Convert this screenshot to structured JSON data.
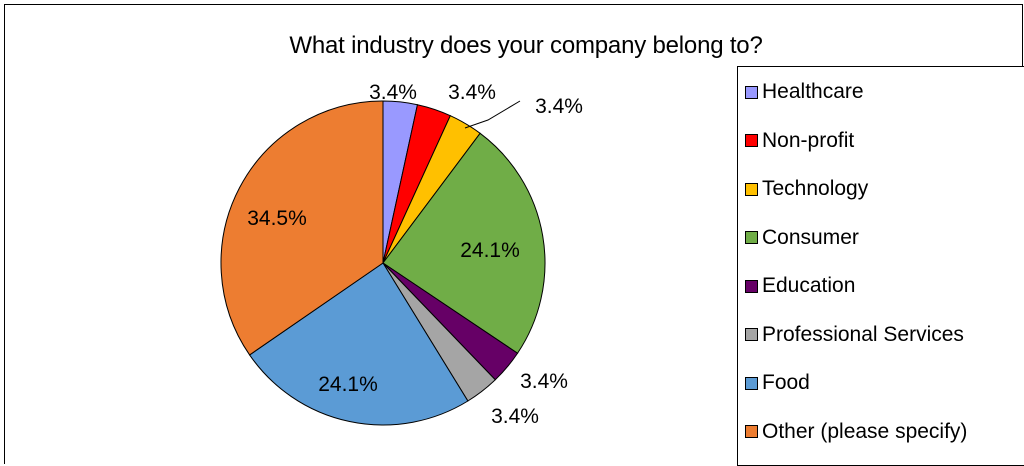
{
  "chart_data": {
    "type": "pie",
    "title": "What industry does your company belong to?",
    "categories": [
      "Healthcare",
      "Non-profit",
      "Technology",
      "Consumer",
      "Education",
      "Professional Services",
      "Food",
      "Other (please specify)"
    ],
    "values": [
      3.4,
      3.4,
      3.4,
      24.1,
      3.4,
      3.4,
      24.1,
      34.5
    ],
    "data_labels": [
      "3.4%",
      "3.4%",
      "3.4%",
      "24.1%",
      "3.4%",
      "3.4%",
      "24.1%",
      "34.5%"
    ],
    "colors": [
      "#9999ff",
      "#ff0000",
      "#ffc000",
      "#70ad47",
      "#660066",
      "#a5a5a5",
      "#5b9bd5",
      "#ed7d31"
    ],
    "legend_position": "right",
    "start_angle": "12 o'clock",
    "direction": "clockwise"
  }
}
